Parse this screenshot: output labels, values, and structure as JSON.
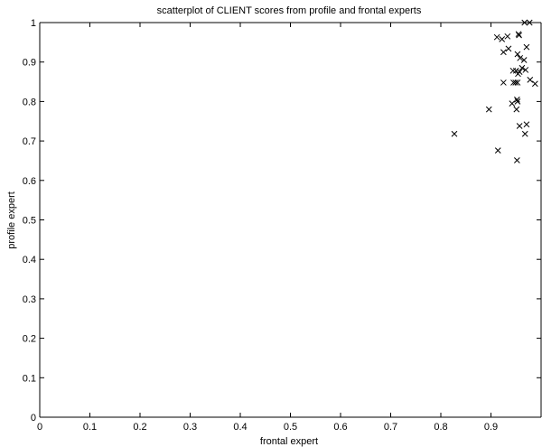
{
  "chart_data": {
    "type": "scatter",
    "title": "scatterplot of CLIENT scores from profile and frontal experts",
    "xlabel": "frontal expert",
    "ylabel": "profile expert",
    "xlim": [
      0,
      1
    ],
    "ylim": [
      0,
      1
    ],
    "xticks": [
      0,
      0.1,
      0.2,
      0.3,
      0.4,
      0.5,
      0.6,
      0.7,
      0.8,
      0.9
    ],
    "xtick_labels": [
      "0",
      "0.1",
      "0.2",
      "0.3",
      "0.4",
      "0.5",
      "0.6",
      "0.7",
      "0.8",
      "0.9"
    ],
    "yticks": [
      0,
      0.1,
      0.2,
      0.3,
      0.4,
      0.5,
      0.6,
      0.7,
      0.8,
      0.9,
      1.0
    ],
    "ytick_labels": [
      "0",
      "0.1",
      "0.2",
      "0.3",
      "0.4",
      "0.5",
      "0.6",
      "0.7",
      "0.8",
      "0.9",
      "1"
    ],
    "marker": "x",
    "grid": false,
    "series": [
      {
        "x": [
          0.967,
          0.977,
          0.912,
          0.922,
          0.933,
          0.925,
          0.935,
          0.955,
          0.956,
          0.971,
          0.953,
          0.958,
          0.966,
          0.962,
          0.944,
          0.95,
          0.969,
          0.957,
          0.954,
          0.949,
          0.925,
          0.978,
          0.988,
          0.953,
          0.945,
          0.952,
          0.942,
          0.953,
          0.951,
          0.896,
          0.827,
          0.971,
          0.957,
          0.968,
          0.914,
          0.952
        ],
        "y": [
          1.0,
          1.0,
          0.963,
          0.958,
          0.965,
          0.925,
          0.934,
          0.971,
          0.968,
          0.938,
          0.92,
          0.91,
          0.905,
          0.885,
          0.878,
          0.878,
          0.88,
          0.875,
          0.87,
          0.848,
          0.848,
          0.855,
          0.845,
          0.848,
          0.848,
          0.805,
          0.795,
          0.8,
          0.78,
          0.78,
          0.718,
          0.742,
          0.738,
          0.718,
          0.676,
          0.651
        ]
      }
    ]
  }
}
